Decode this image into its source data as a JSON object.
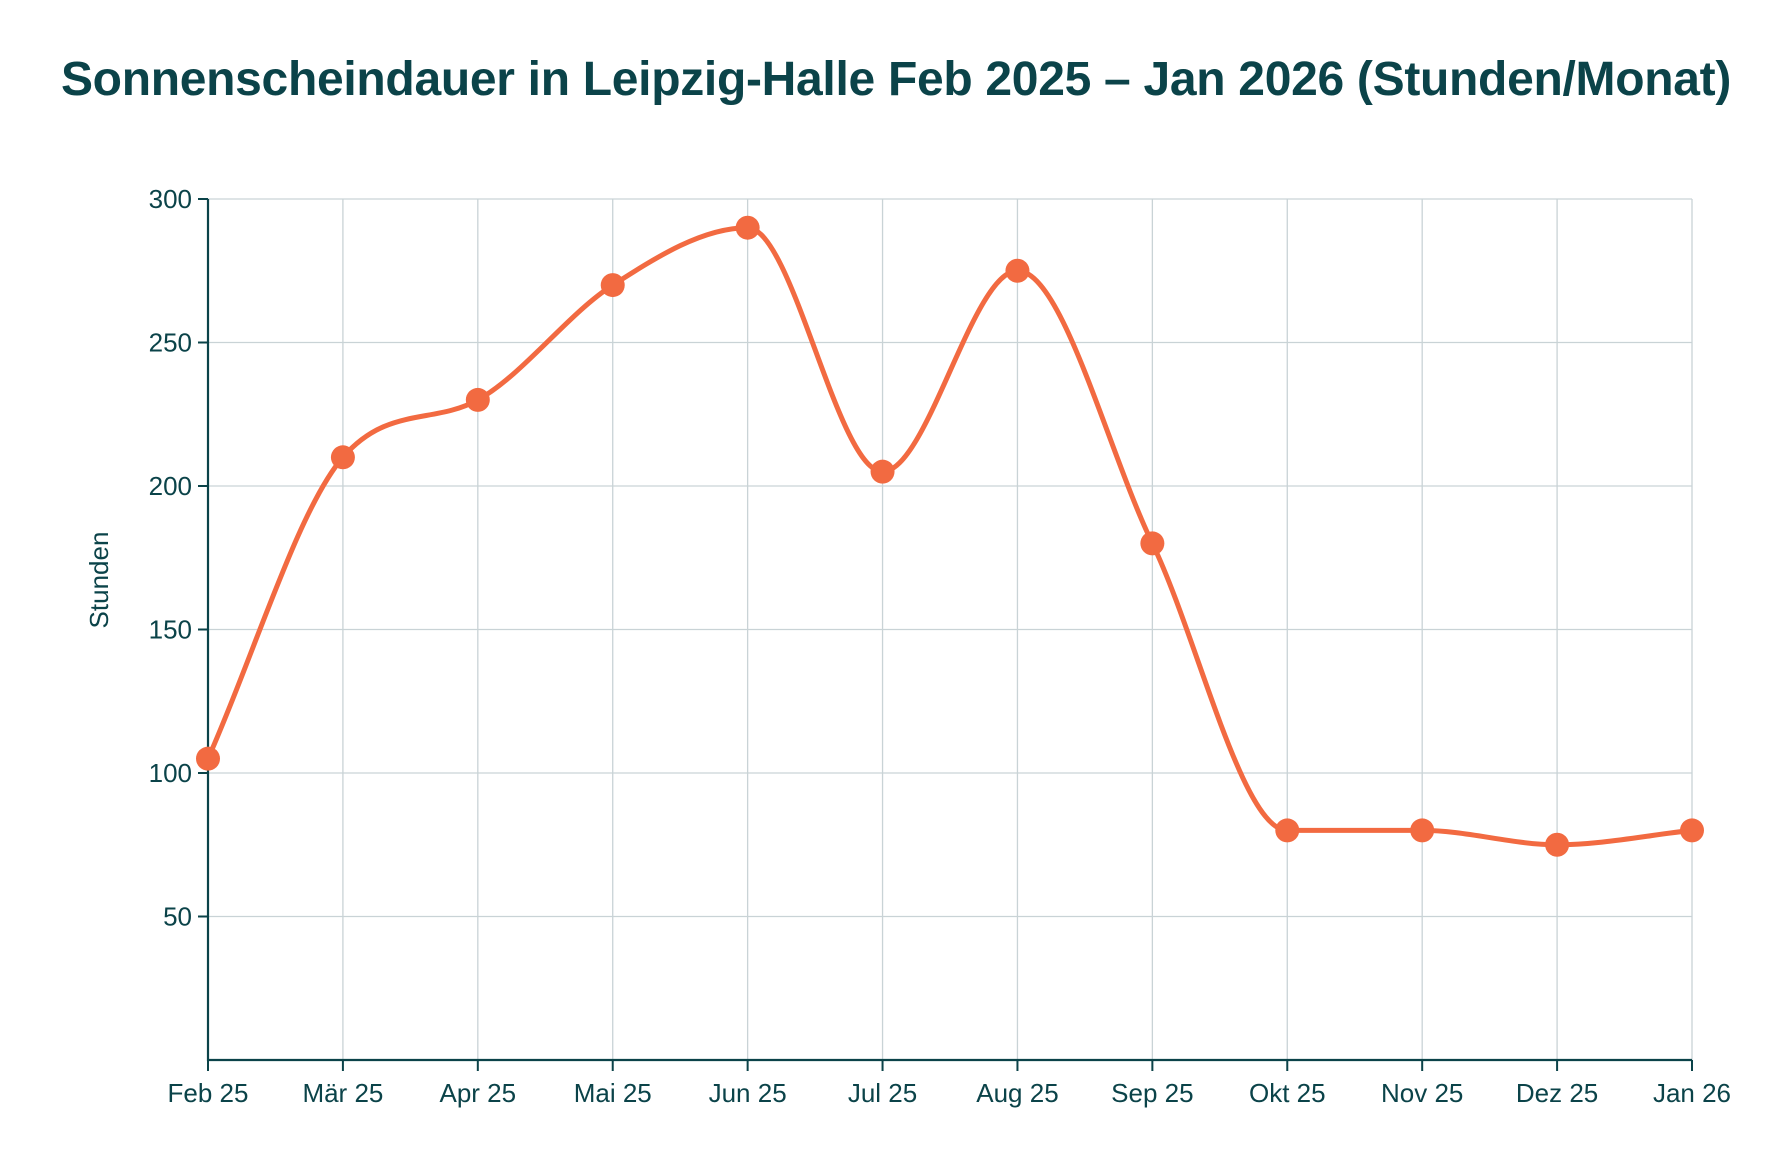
{
  "title": "Sonnenscheindauer in Leipzig-Halle Feb 2025 – Jan 2026 (Stunden/Monat)",
  "colors": {
    "line": "#f26a41",
    "axis": "#0b4349",
    "grid": "#c9d3d6",
    "text": "#0b4349"
  },
  "chart_data": {
    "type": "line",
    "title": "Sonnenscheindauer in Leipzig-Halle Feb 2025 – Jan 2026 (Stunden/Monat)",
    "xlabel": "",
    "ylabel": "Stunden",
    "categories": [
      "Feb 25",
      "Mär 25",
      "Apr 25",
      "Mai 25",
      "Jun 25",
      "Jul 25",
      "Aug 25",
      "Sep 25",
      "Okt 25",
      "Nov 25",
      "Dez 25",
      "Jan 26"
    ],
    "series": [
      {
        "name": "Sonnenscheindauer",
        "values": [
          105,
          210,
          230,
          270,
          290,
          205,
          275,
          180,
          80,
          80,
          75,
          80
        ],
        "color": "#f26a41",
        "smooth": true,
        "markers": true
      }
    ],
    "ylim": [
      0,
      300
    ],
    "yticks": [
      50,
      100,
      150,
      200,
      250,
      300
    ],
    "grid": true,
    "legend": "none"
  }
}
